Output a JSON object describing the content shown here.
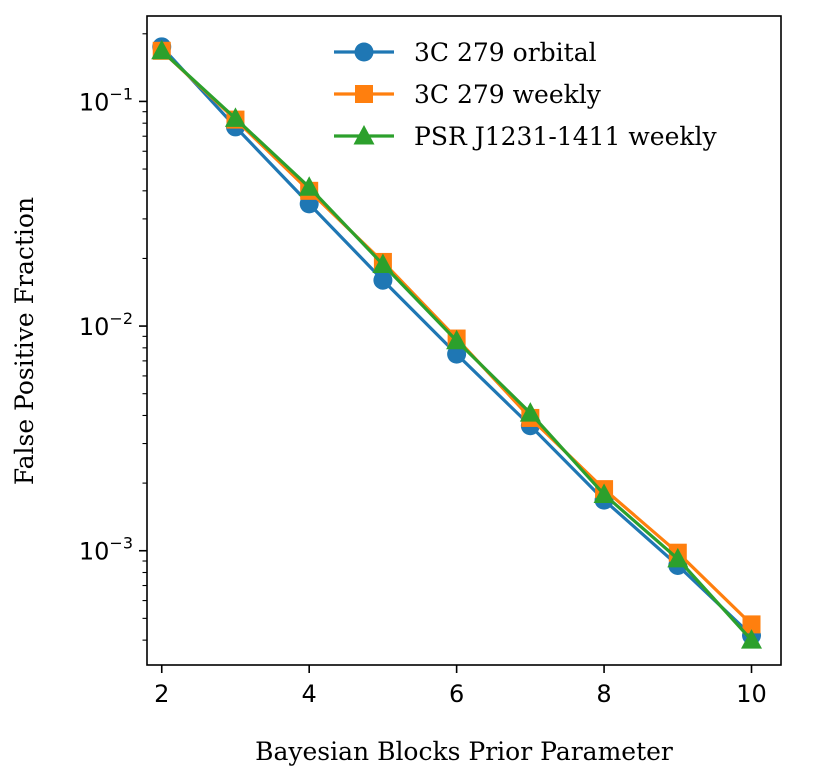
{
  "chart_data": {
    "type": "line",
    "title": "",
    "xlabel": "Bayesian Blocks Prior Parameter",
    "ylabel": "False Positive Fraction",
    "yscale": "log",
    "xlim": [
      1.8,
      10.4
    ],
    "ylim": [
      0.00031,
      0.24
    ],
    "xticks": [
      2,
      4,
      6,
      8,
      10
    ],
    "xtick_labels": [
      "2",
      "4",
      "6",
      "8",
      "10"
    ],
    "yticks": [
      0.1,
      0.01,
      0.001
    ],
    "ytick_labels": [
      {
        "base": "10",
        "exp": "−1"
      },
      {
        "base": "10",
        "exp": "−2"
      },
      {
        "base": "10",
        "exp": "−3"
      }
    ],
    "legend_position": "top-right",
    "x": [
      2,
      3,
      4,
      5,
      6,
      7,
      8,
      9,
      10
    ],
    "series": [
      {
        "name": "3C 279 orbital",
        "color": "#1f77b4",
        "marker": "circle",
        "values": [
          0.175,
          0.077,
          0.035,
          0.016,
          0.0075,
          0.0036,
          0.00168,
          0.00086,
          0.00042
        ]
      },
      {
        "name": "3C 279 weekly",
        "color": "#ff7f0e",
        "marker": "square",
        "values": [
          0.168,
          0.083,
          0.04,
          0.0193,
          0.0088,
          0.0039,
          0.00188,
          0.00098,
          0.00047
        ]
      },
      {
        "name": "PSR J1231-1411 weekly",
        "color": "#2ca02c",
        "marker": "triangle",
        "values": [
          0.168,
          0.084,
          0.0415,
          0.0188,
          0.0086,
          0.0041,
          0.00178,
          0.00092,
          0.0004
        ]
      }
    ]
  }
}
